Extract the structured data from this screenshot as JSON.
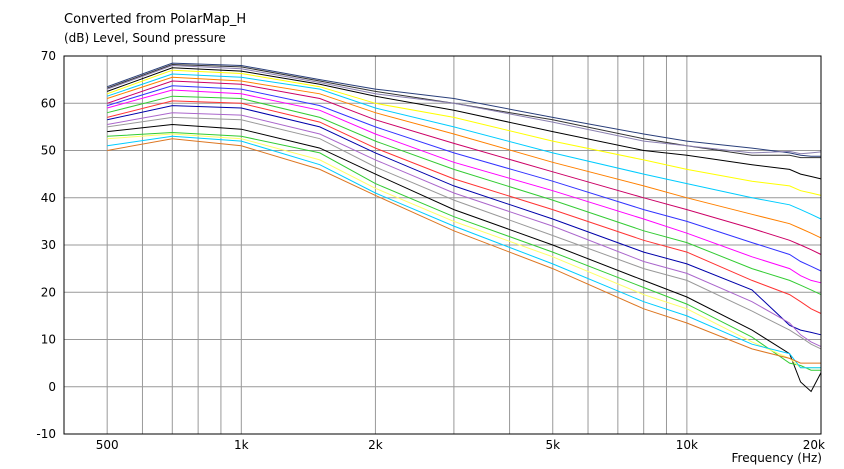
{
  "header": {
    "title": "Converted from PolarMap_H",
    "ylabel": "(dB)  Level, Sound pressure",
    "xlabel": "Frequency  (Hz)"
  },
  "chart_data": {
    "type": "line",
    "title": "Converted from PolarMap_H",
    "ylabel": "(dB)  Level, Sound pressure",
    "xlabel": "Frequency  (Hz)",
    "xscale": "log",
    "xlim": [
      400,
      20000
    ],
    "ylim": [
      -10,
      70
    ],
    "grid": true,
    "x_ticks": [
      {
        "value": 500,
        "label": "500"
      },
      {
        "value": 1000,
        "label": "1k"
      },
      {
        "value": 2000,
        "label": "2k"
      },
      {
        "value": 5000,
        "label": "5k"
      },
      {
        "value": 10000,
        "label": "10k"
      },
      {
        "value": 20000,
        "label": "20k"
      }
    ],
    "y_ticks": [
      70,
      60,
      50,
      40,
      30,
      20,
      10,
      0,
      -10
    ],
    "x": [
      500,
      700,
      1000,
      1500,
      2000,
      3000,
      5000,
      8000,
      10000,
      14000,
      17000,
      18000,
      19000,
      20000
    ],
    "series": [
      {
        "color": "#2a3f7a",
        "values": [
          63.5,
          68.5,
          68,
          65,
          63,
          61,
          57,
          53.5,
          52,
          50.5,
          49.5,
          49,
          48.8,
          48.8
        ]
      },
      {
        "color": "#333333",
        "values": [
          63.2,
          68.2,
          67.7,
          64.7,
          62.5,
          60,
          56.5,
          52.5,
          51,
          49,
          49,
          48.5,
          48.5,
          48.5
        ]
      },
      {
        "color": "#8a7fb0",
        "values": [
          63,
          68,
          67.3,
          64.4,
          62,
          60,
          56,
          52,
          51,
          49.5,
          49.8,
          49.3,
          49.5,
          49.7
        ]
      },
      {
        "color": "#000000",
        "values": [
          62.5,
          67.5,
          66.8,
          64,
          61.5,
          58.5,
          54,
          50,
          49,
          47,
          46,
          45,
          44.5,
          44
        ]
      },
      {
        "color": "#ffff00",
        "values": [
          62,
          67,
          66.3,
          63.5,
          60,
          57,
          52,
          48,
          46,
          43.5,
          42.5,
          41.5,
          41,
          40.5
        ]
      },
      {
        "color": "#00ccff",
        "values": [
          61.5,
          66.2,
          65.5,
          63,
          59,
          55,
          49.5,
          45,
          43,
          40,
          38.5,
          37.5,
          36.5,
          35.5
        ]
      },
      {
        "color": "#ff8000",
        "values": [
          61,
          65.5,
          64.7,
          62,
          58,
          53.5,
          47.5,
          42.5,
          40,
          36.5,
          34.5,
          33.5,
          32.5,
          31.5
        ]
      },
      {
        "color": "#cc0066",
        "values": [
          60,
          64.7,
          64,
          61,
          56.5,
          51.5,
          45.5,
          40,
          37.5,
          33.5,
          31,
          30,
          29,
          28
        ]
      },
      {
        "color": "#3333ff",
        "values": [
          59.5,
          63.7,
          63,
          59.5,
          55,
          49.5,
          43.5,
          37.5,
          35,
          30.5,
          28,
          26.5,
          25.5,
          24.5
        ]
      },
      {
        "color": "#ff00ff",
        "values": [
          59,
          62.8,
          62,
          58.5,
          53.5,
          47.5,
          41.5,
          35.5,
          32.5,
          27.5,
          25,
          23.5,
          22.5,
          22
        ]
      },
      {
        "color": "#33cc33",
        "values": [
          58,
          61.5,
          61,
          57,
          52,
          46,
          39.5,
          33,
          30.5,
          25,
          22.5,
          21.5,
          20.5,
          19.5
        ]
      },
      {
        "color": "#ff3333",
        "values": [
          57,
          60.5,
          60,
          56,
          50.5,
          44,
          37.5,
          31,
          28.5,
          22.5,
          19.5,
          18,
          16.5,
          15.5
        ]
      },
      {
        "color": "#0000aa",
        "values": [
          56.5,
          59.5,
          59,
          55,
          49.5,
          42.5,
          35.5,
          28.5,
          26,
          20.5,
          13,
          12,
          11.5,
          11
        ]
      },
      {
        "color": "#aa66cc",
        "values": [
          55.5,
          58,
          57.5,
          53.5,
          48,
          41,
          34,
          26.5,
          24,
          18,
          13.5,
          11,
          9.5,
          8.5
        ]
      },
      {
        "color": "#999999",
        "values": [
          55,
          57,
          56.5,
          52.5,
          46.5,
          39.5,
          32,
          25,
          22.5,
          16,
          12,
          10.5,
          9,
          8
        ]
      },
      {
        "color": "#000000",
        "values": [
          54,
          55.5,
          54.5,
          50.5,
          45,
          37.5,
          30,
          22.5,
          19,
          12,
          7,
          1,
          -1,
          3
        ]
      },
      {
        "color": "#33cc33",
        "values": [
          53,
          53.8,
          53,
          49.5,
          43,
          36,
          28.5,
          21,
          17.5,
          10.5,
          5,
          4.5,
          3.5,
          3.5
        ]
      },
      {
        "color": "#ffff66",
        "values": [
          52.5,
          53.5,
          52.5,
          48,
          42,
          35,
          27.5,
          19.5,
          16.5,
          9.5,
          6,
          4,
          4,
          4
        ]
      },
      {
        "color": "#00ccff",
        "values": [
          51,
          53,
          52,
          47,
          41,
          34,
          26,
          18,
          15,
          9,
          7,
          4,
          4,
          4
        ]
      },
      {
        "color": "#dd7722",
        "values": [
          50,
          52.5,
          51,
          46,
          40.5,
          33,
          25,
          16.5,
          13.5,
          8,
          6,
          5,
          5,
          5
        ]
      }
    ]
  }
}
